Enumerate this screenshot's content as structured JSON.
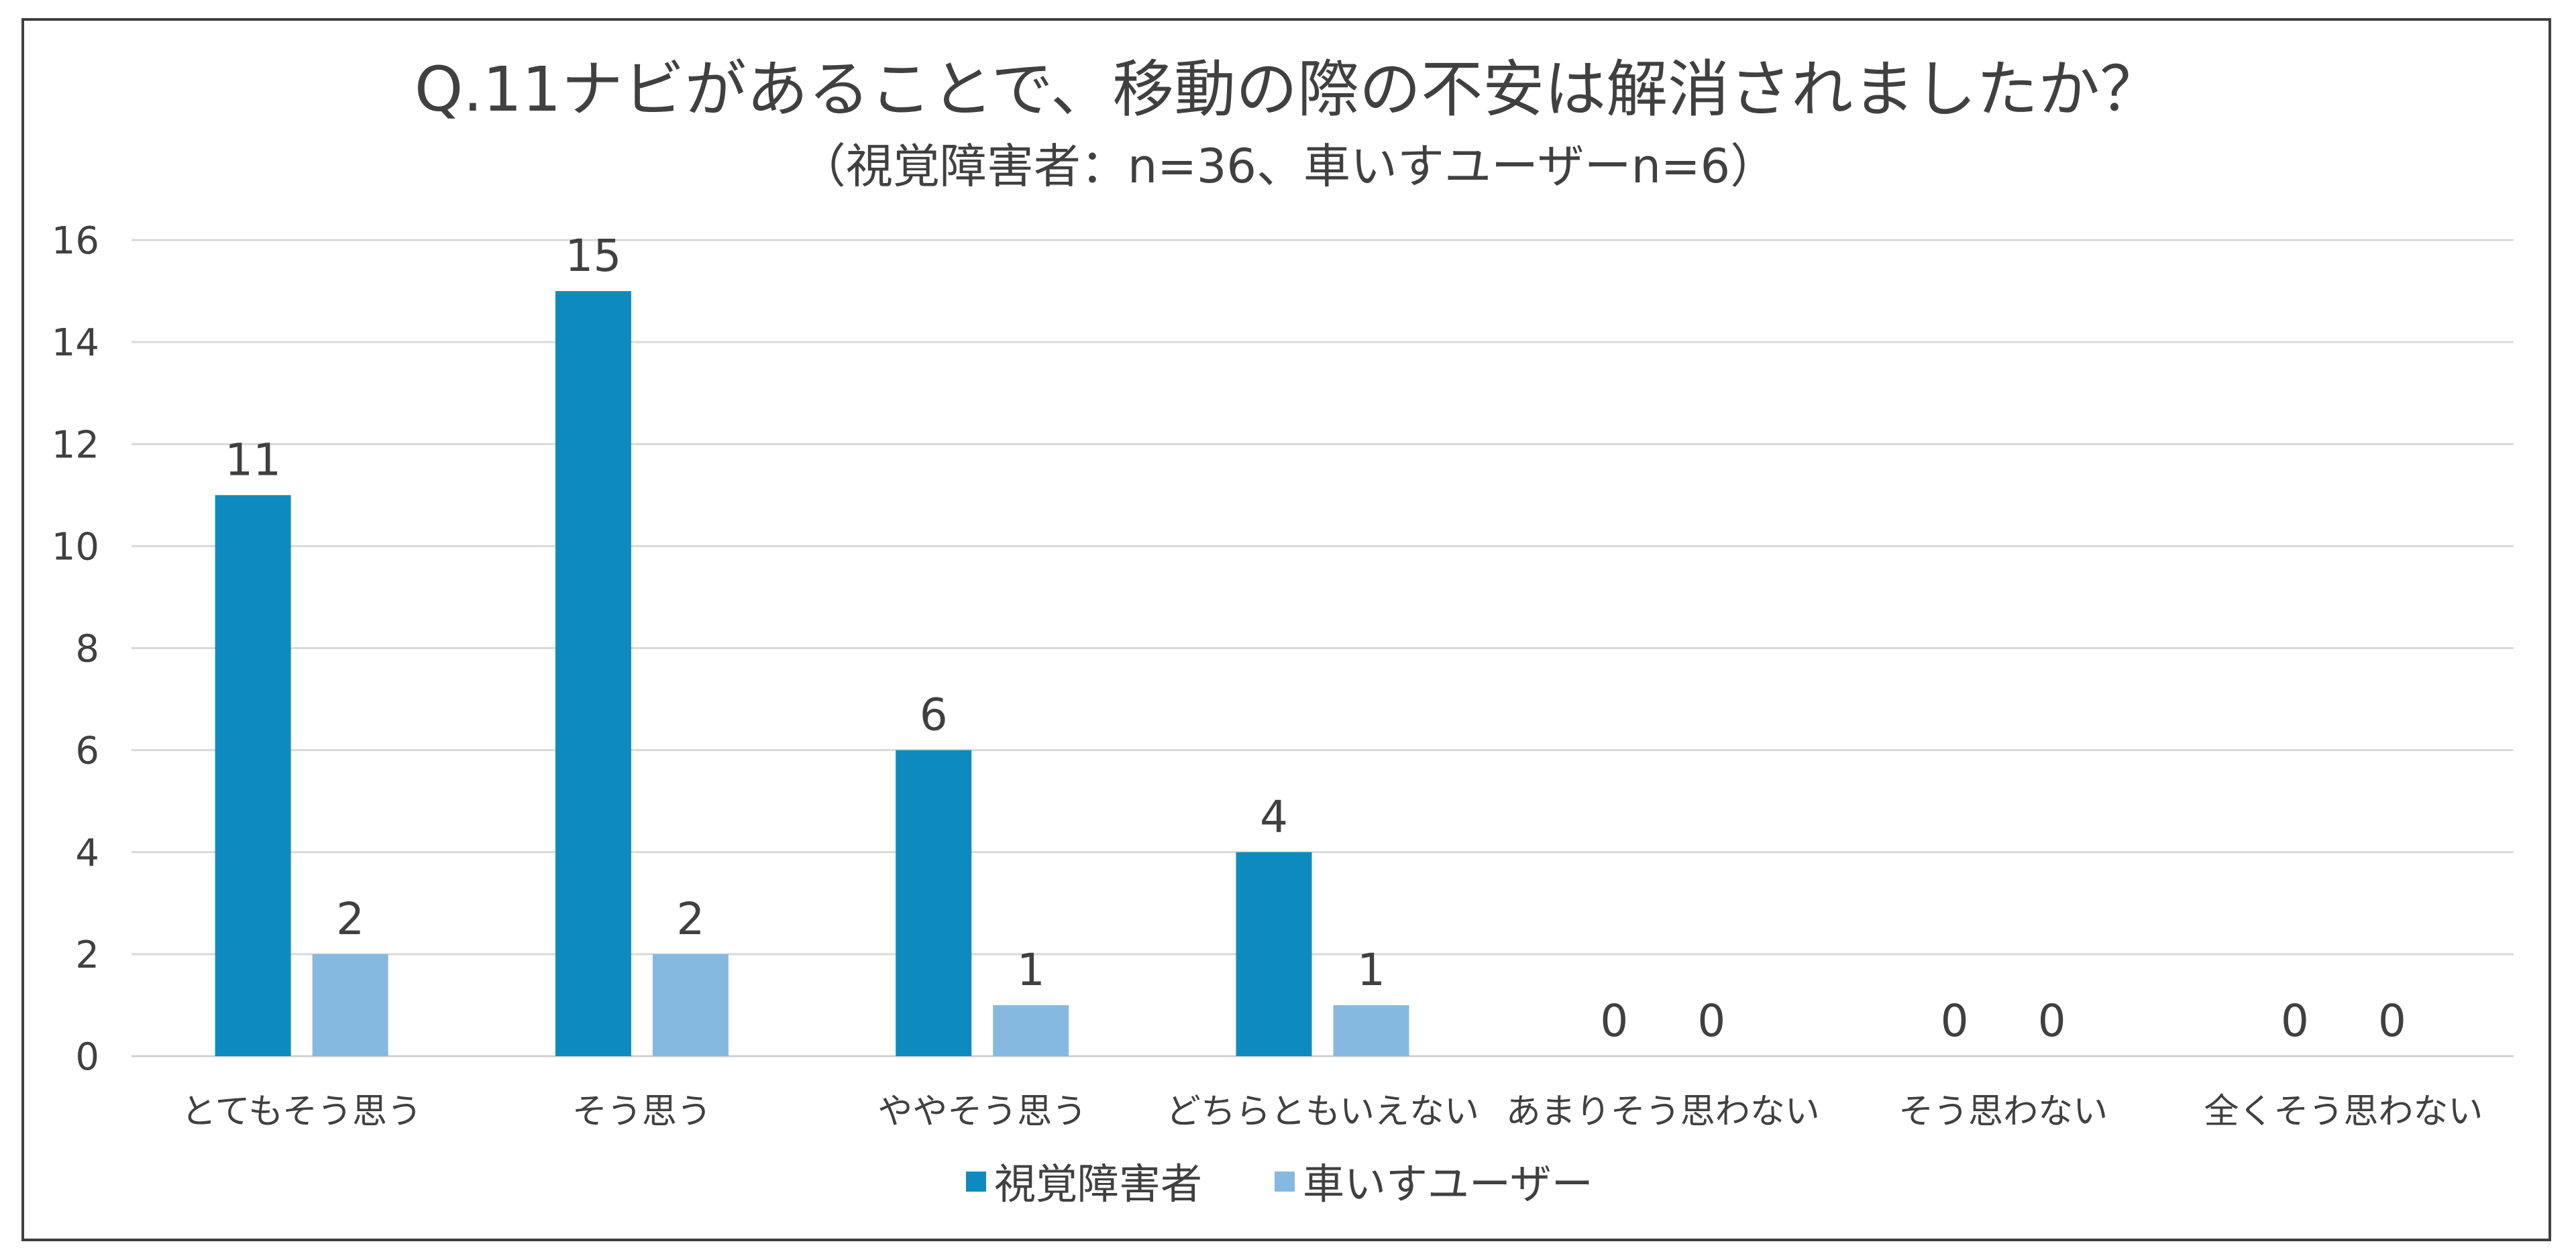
{
  "chart_data": {
    "type": "bar",
    "title": "Q.11ナビがあることで、移動の際の不安は解消されましたか？",
    "subtitle": "（視覚障害者：n=36、車いすユーザーn=6）",
    "categories": [
      "とてもそう思う",
      "そう思う",
      "ややそう思う",
      "どちらともいえない",
      "あまりそう思わない",
      "そう思わない",
      "全くそう思わない"
    ],
    "series": [
      {
        "name": "視覚障害者",
        "color": "#0E8BBE",
        "values": [
          11,
          15,
          6,
          4,
          0,
          0,
          0
        ]
      },
      {
        "name": "車いすユーザー",
        "color": "#86B9E0",
        "values": [
          2,
          2,
          1,
          1,
          0,
          0,
          0
        ]
      }
    ],
    "ylim": [
      0,
      16
    ],
    "yticks": [
      0,
      2,
      4,
      6,
      8,
      10,
      12,
      14,
      16
    ],
    "grid": true,
    "data_labels": true,
    "legend": "bottom"
  }
}
